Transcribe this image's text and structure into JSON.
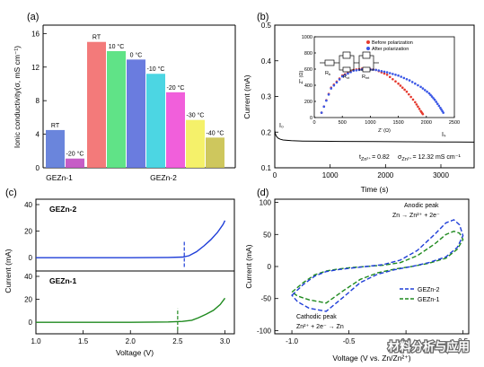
{
  "panels": {
    "a": {
      "label": "(a)"
    },
    "b": {
      "label": "(b)"
    },
    "c": {
      "label": "(c)"
    },
    "d": {
      "label": "(d)"
    }
  },
  "colors": {
    "gezn2_blue": "#1f3ed8",
    "gezn1_green": "#1f8a1f",
    "before_red": "#e53a2f",
    "after_blue": "#3a57e6"
  },
  "chart_data": [
    {
      "id": "a",
      "type": "bar",
      "ylabel": "Ionic conductivity(σ, mS cm⁻¹)",
      "ylim": [
        0,
        17
      ],
      "yticks": [
        0,
        4,
        8,
        12,
        16
      ],
      "groups": [
        {
          "name": "GEZn-1",
          "categories": [
            "RT",
            "-20 °C"
          ],
          "values": [
            4.5,
            1.1
          ],
          "colors": [
            "#5a78d8",
            "#c04bc0"
          ]
        },
        {
          "name": "GEZn-2",
          "categories": [
            "RT",
            "10 °C",
            "0 °C",
            "-10 °C",
            "-20 °C",
            "-30 °C",
            "-40 °C"
          ],
          "values": [
            15.0,
            13.9,
            12.9,
            11.2,
            9.0,
            5.7,
            3.6
          ],
          "colors": [
            "#f26b6b",
            "#4fe07a",
            "#5a6edb",
            "#38d2e0",
            "#f04ed7",
            "#f4ef5a",
            "#c9c14b"
          ]
        }
      ],
      "grid": false
    },
    {
      "id": "b",
      "type": "line",
      "xlabel": "Time (s)",
      "ylabel": "Current (mA)",
      "xlim": [
        0,
        3600
      ],
      "ylim": [
        0.1,
        0.5
      ],
      "xticks": [
        0,
        1000,
        2000,
        3000
      ],
      "yticks": [
        0.1,
        0.2,
        0.3,
        0.4,
        0.5
      ],
      "yticklabels": [
        "0.1",
        "0.2",
        "0.3",
        "0.4",
        "0.5"
      ],
      "series": [
        {
          "x": [
            0,
            10,
            30,
            60,
            100,
            150,
            220,
            300,
            500,
            800,
            1200,
            1800,
            2400,
            3000,
            3600
          ],
          "y": [
            0.205,
            0.195,
            0.188,
            0.183,
            0.18,
            0.178,
            0.177,
            0.176,
            0.175,
            0.1745,
            0.174,
            0.1735,
            0.173,
            0.1725,
            0.172
          ]
        }
      ],
      "annotations": {
        "i0": "I₀",
        "is": "Iₛ",
        "t_label": "t",
        "t_value": "= 0.82",
        "sigma_label": "σ",
        "sigma_value": "= 12.32 mS cm⁻¹"
      },
      "inset": {
        "type": "scatter",
        "xlabel": "Z' (Ω)",
        "ylabel": "Z\" (Ω)",
        "xlim": [
          0,
          2500
        ],
        "ylim": [
          0,
          1000
        ],
        "xticks": [
          0,
          500,
          1000,
          1500,
          2000,
          2500
        ],
        "yticks": [
          0,
          200,
          400,
          600,
          800,
          1000
        ],
        "circuit_labels": [
          "R",
          "R",
          "R"
        ],
        "circuit_subs": [
          "b",
          "ct",
          "int"
        ],
        "series": [
          {
            "name": "Before polarization",
            "color": "#e53a2f",
            "x": [
              130,
              300,
              500,
              700,
              900,
              1100,
              1300,
              1500,
              1650,
              1800,
              1900,
              1950
            ],
            "y": [
              60,
              370,
              520,
              590,
              610,
              590,
              530,
              420,
              320,
              190,
              80,
              30
            ]
          },
          {
            "name": "After polarization",
            "color": "#3a57e6",
            "x": [
              130,
              300,
              500,
              700,
              900,
              1100,
              1300,
              1500,
              1700,
              1900,
              2050,
              2150,
              2250,
              2320
            ],
            "y": [
              60,
              360,
              510,
              580,
              600,
              590,
              560,
              520,
              460,
              380,
              300,
              220,
              120,
              40
            ]
          }
        ]
      }
    },
    {
      "id": "c",
      "type": "line",
      "xlabel": "Voltage (V)",
      "ylabel": "Current (mA)",
      "xlim": [
        1.0,
        3.1
      ],
      "xticks": [
        1.0,
        1.5,
        2.0,
        2.5,
        3.0
      ],
      "xticklabels": [
        "1.0",
        "1.5",
        "2.0",
        "2.5",
        "3.0"
      ],
      "subplots": [
        {
          "name": "GEZn-2",
          "color": "#1f3ed8",
          "ylim": [
            -10,
            40
          ],
          "yticks": [
            0,
            20,
            40
          ],
          "x": [
            1.0,
            1.5,
            2.0,
            2.4,
            2.55,
            2.62,
            2.7,
            2.78,
            2.85,
            2.92,
            2.98,
            3.0
          ],
          "y": [
            0,
            0,
            0,
            0.2,
            0.5,
            1.5,
            4.5,
            9.0,
            13.5,
            19.0,
            25.0,
            28.0
          ],
          "onset": 2.57
        },
        {
          "name": "GEZn-1",
          "color": "#1f8a1f",
          "ylim": [
            -10,
            40
          ],
          "yticks": [
            0,
            20,
            40
          ],
          "x": [
            1.0,
            1.5,
            2.0,
            2.4,
            2.55,
            2.65,
            2.72,
            2.8,
            2.88,
            2.95,
            3.0
          ],
          "y": [
            0,
            0,
            0,
            0.3,
            0.8,
            1.8,
            4.0,
            7.0,
            10.5,
            15.5,
            21.0
          ],
          "onset": 2.5
        }
      ]
    },
    {
      "id": "d",
      "type": "line",
      "xlabel": "Voltage (V vs. Zn/Zn²⁺)",
      "ylabel": "Current (mA)",
      "xlim": [
        -1.15,
        0.55
      ],
      "ylim": [
        -105,
        105
      ],
      "xticks": [
        -1.0,
        -0.5,
        0.0,
        0.5
      ],
      "xticklabels": [
        "-1.0",
        "-0.5",
        "0.0",
        "0.5"
      ],
      "yticks": [
        -100,
        -50,
        0,
        50,
        100
      ],
      "annotations": {
        "anodic_title": "Anodic peak",
        "anodic_eq": "Zn → Zn²⁺ + 2e⁻",
        "cathodic_title": "Cathodic peak",
        "cathodic_eq": "Zn²⁺ + 2e⁻ → Zn"
      },
      "series": [
        {
          "name": "GEZn-2",
          "color": "#1f3ed8",
          "x": [
            -1.0,
            -0.9,
            -0.8,
            -0.7,
            -0.6,
            -0.5,
            -0.35,
            -0.2,
            -0.05,
            0.1,
            0.25,
            0.35,
            0.42,
            0.47,
            0.5,
            0.45,
            0.35,
            0.2,
            0.05,
            -0.1,
            -0.25,
            -0.4,
            -0.55,
            -0.7,
            -0.85,
            -0.95,
            -1.0
          ],
          "y": [
            -45,
            -28,
            -15,
            -8,
            -5,
            -3,
            0,
            3,
            10,
            25,
            50,
            68,
            73,
            65,
            48,
            30,
            15,
            6,
            0,
            -5,
            -12,
            -25,
            -48,
            -70,
            -65,
            -55,
            -45
          ]
        },
        {
          "name": "GEZn-1",
          "color": "#1f8a1f",
          "x": [
            -1.0,
            -0.9,
            -0.8,
            -0.7,
            -0.6,
            -0.5,
            -0.35,
            -0.2,
            -0.05,
            0.1,
            0.25,
            0.35,
            0.42,
            0.47,
            0.5,
            0.45,
            0.35,
            0.2,
            0.05,
            -0.1,
            -0.25,
            -0.4,
            -0.55,
            -0.7,
            -0.85,
            -0.95,
            -1.0
          ],
          "y": [
            -40,
            -25,
            -13,
            -7,
            -4,
            -2,
            0,
            2,
            6,
            17,
            35,
            50,
            55,
            52,
            42,
            27,
            13,
            5,
            0,
            -4,
            -10,
            -20,
            -38,
            -57,
            -52,
            -46,
            -40
          ]
        }
      ]
    }
  ],
  "watermark": "材料分析与应用"
}
